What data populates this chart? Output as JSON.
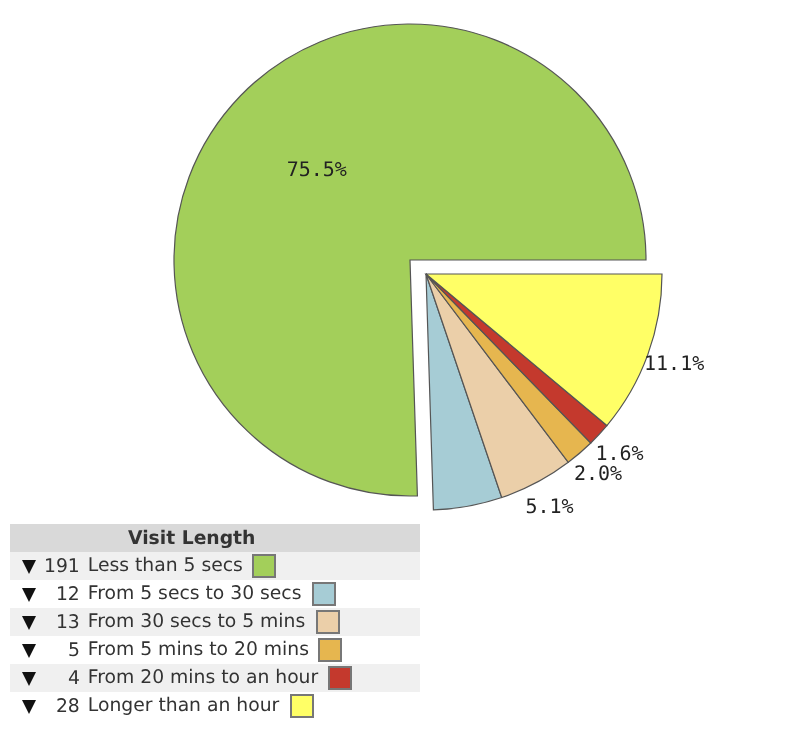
{
  "chart_data": {
    "type": "pie",
    "legend_title": "Visit Length",
    "legend": "bottom left",
    "categories": [
      "Less than 5 secs",
      "From 5 secs to 30 secs",
      "From 30 secs to 5 mins",
      "From 5 mins to 20 mins",
      "From 20 mins to an hour",
      "Longer than an hour"
    ],
    "values": [
      75.5,
      4.7,
      5.1,
      2.0,
      1.6,
      11.1
    ],
    "annotations": [
      {
        "text": "191",
        "x": "Less than 5 secs"
      },
      {
        "text": "12",
        "x": "From 5 secs to 30 secs"
      },
      {
        "text": "13",
        "x": "From 30 secs to 5 mins"
      },
      {
        "text": "5",
        "x": "From 5 mins to 20 mins"
      },
      {
        "text": "4",
        "x": "From 20 mins to an hour"
      },
      {
        "text": "28",
        "x": "Longer than an hour"
      }
    ],
    "value_labels": [
      "75.5%",
      null,
      "5.1%",
      "2.0%",
      "1.6%",
      "11.1%"
    ],
    "colors": [
      "#a3cf5a",
      "#a6ccd5",
      "#ebcfa9",
      "#e6b64f",
      "#c4392d",
      "#ffff66"
    ]
  }
}
